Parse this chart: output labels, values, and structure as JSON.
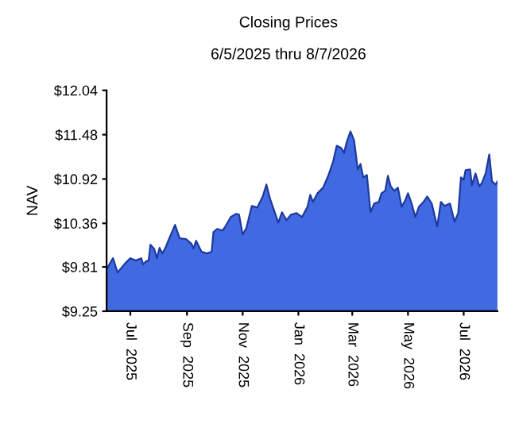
{
  "chart_data": {
    "type": "area",
    "title": "Closing Prices",
    "subtitle": "6/5/2025 thru 8/7/2026",
    "ylabel": "NAV",
    "x": [
      "2025-06-05",
      "2025-06-12",
      "2025-06-17",
      "2025-06-25",
      "2025-07-01",
      "2025-07-07",
      "2025-07-13",
      "2025-07-15",
      "2025-07-18",
      "2025-07-21",
      "2025-07-23",
      "2025-07-27",
      "2025-07-30",
      "2025-08-02",
      "2025-08-05",
      "2025-08-08",
      "2025-08-13",
      "2025-08-19",
      "2025-08-24",
      "2025-08-31",
      "2025-09-06",
      "2025-09-08",
      "2025-09-11",
      "2025-09-17",
      "2025-09-23",
      "2025-09-28",
      "2025-09-30",
      "2025-10-04",
      "2025-10-10",
      "2025-10-13",
      "2025-10-19",
      "2025-10-25",
      "2025-10-28",
      "2025-11-01",
      "2025-11-05",
      "2025-11-11",
      "2025-11-17",
      "2025-11-23",
      "2025-11-27",
      "2025-12-01",
      "2025-12-07",
      "2025-12-10",
      "2025-12-14",
      "2025-12-19",
      "2025-12-24",
      "2025-12-30",
      "2026-01-05",
      "2026-01-11",
      "2026-01-14",
      "2026-01-17",
      "2026-01-22",
      "2026-01-28",
      "2026-02-03",
      "2026-02-08",
      "2026-02-12",
      "2026-02-17",
      "2026-02-20",
      "2026-02-23",
      "2026-02-27",
      "2026-03-03",
      "2026-03-07",
      "2026-03-10",
      "2026-03-13",
      "2026-03-17",
      "2026-03-21",
      "2026-03-25",
      "2026-03-30",
      "2026-04-02",
      "2026-04-06",
      "2026-04-09",
      "2026-04-12",
      "2026-04-16",
      "2026-04-20",
      "2026-04-24",
      "2026-04-28",
      "2026-05-01",
      "2026-05-05",
      "2026-05-09",
      "2026-05-13",
      "2026-05-18",
      "2026-05-22",
      "2026-05-27",
      "2026-06-02",
      "2026-06-06",
      "2026-06-10",
      "2026-06-16",
      "2026-06-21",
      "2026-06-25",
      "2026-06-28",
      "2026-07-01",
      "2026-07-03",
      "2026-07-08",
      "2026-07-10",
      "2026-07-14",
      "2026-07-18",
      "2026-07-21",
      "2026-07-25",
      "2026-07-29",
      "2026-08-01",
      "2026-08-05",
      "2026-08-07"
    ],
    "series": [
      {
        "color": "#4169e1",
        "values": [
          9.78,
          9.92,
          9.74,
          9.85,
          9.92,
          9.89,
          9.92,
          9.84,
          9.88,
          9.89,
          10.09,
          10.04,
          9.92,
          10.05,
          9.98,
          10.04,
          10.18,
          10.34,
          10.17,
          10.16,
          10.1,
          10.04,
          10.14,
          10.0,
          9.98,
          10.0,
          10.25,
          10.29,
          10.27,
          10.32,
          10.44,
          10.48,
          10.47,
          10.22,
          10.3,
          10.58,
          10.56,
          10.7,
          10.85,
          10.67,
          10.47,
          10.37,
          10.5,
          10.4,
          10.47,
          10.49,
          10.44,
          10.57,
          10.72,
          10.63,
          10.74,
          10.81,
          10.97,
          11.14,
          11.34,
          11.31,
          11.25,
          11.39,
          11.52,
          11.41,
          11.04,
          11.11,
          10.94,
          10.97,
          10.5,
          10.61,
          10.63,
          10.74,
          10.77,
          10.96,
          10.83,
          10.77,
          10.81,
          10.57,
          10.65,
          10.74,
          10.61,
          10.44,
          10.57,
          10.63,
          10.7,
          10.61,
          10.32,
          10.63,
          10.58,
          10.61,
          10.38,
          10.49,
          10.94,
          10.91,
          11.03,
          11.04,
          10.84,
          10.99,
          10.83,
          10.87,
          10.99,
          11.23,
          10.89,
          10.85,
          10.89
        ]
      }
    ],
    "xlim": [
      "2025-06-05",
      "2026-08-07"
    ],
    "xticks": [
      {
        "value": "2025-07-01",
        "label": "Jul  2025"
      },
      {
        "value": "2025-09-01",
        "label": "Sep  2025"
      },
      {
        "value": "2025-11-01",
        "label": "Nov  2025"
      },
      {
        "value": "2026-01-01",
        "label": "Jan  2026"
      },
      {
        "value": "2026-03-01",
        "label": "Mar  2026"
      },
      {
        "value": "2026-05-01",
        "label": "May  2026"
      },
      {
        "value": "2026-07-01",
        "label": "Jul  2026"
      }
    ],
    "ylim": [
      9.25,
      12.04
    ],
    "yticks": [
      {
        "value": 9.25,
        "label": "$9.25"
      },
      {
        "value": 9.81,
        "label": "$9.81"
      },
      {
        "value": 10.36,
        "label": "$10.36"
      },
      {
        "value": 10.92,
        "label": "$10.92"
      },
      {
        "value": 11.48,
        "label": "$11.48"
      },
      {
        "value": 12.04,
        "label": "$12.04"
      }
    ],
    "grid": false,
    "legend": false
  }
}
